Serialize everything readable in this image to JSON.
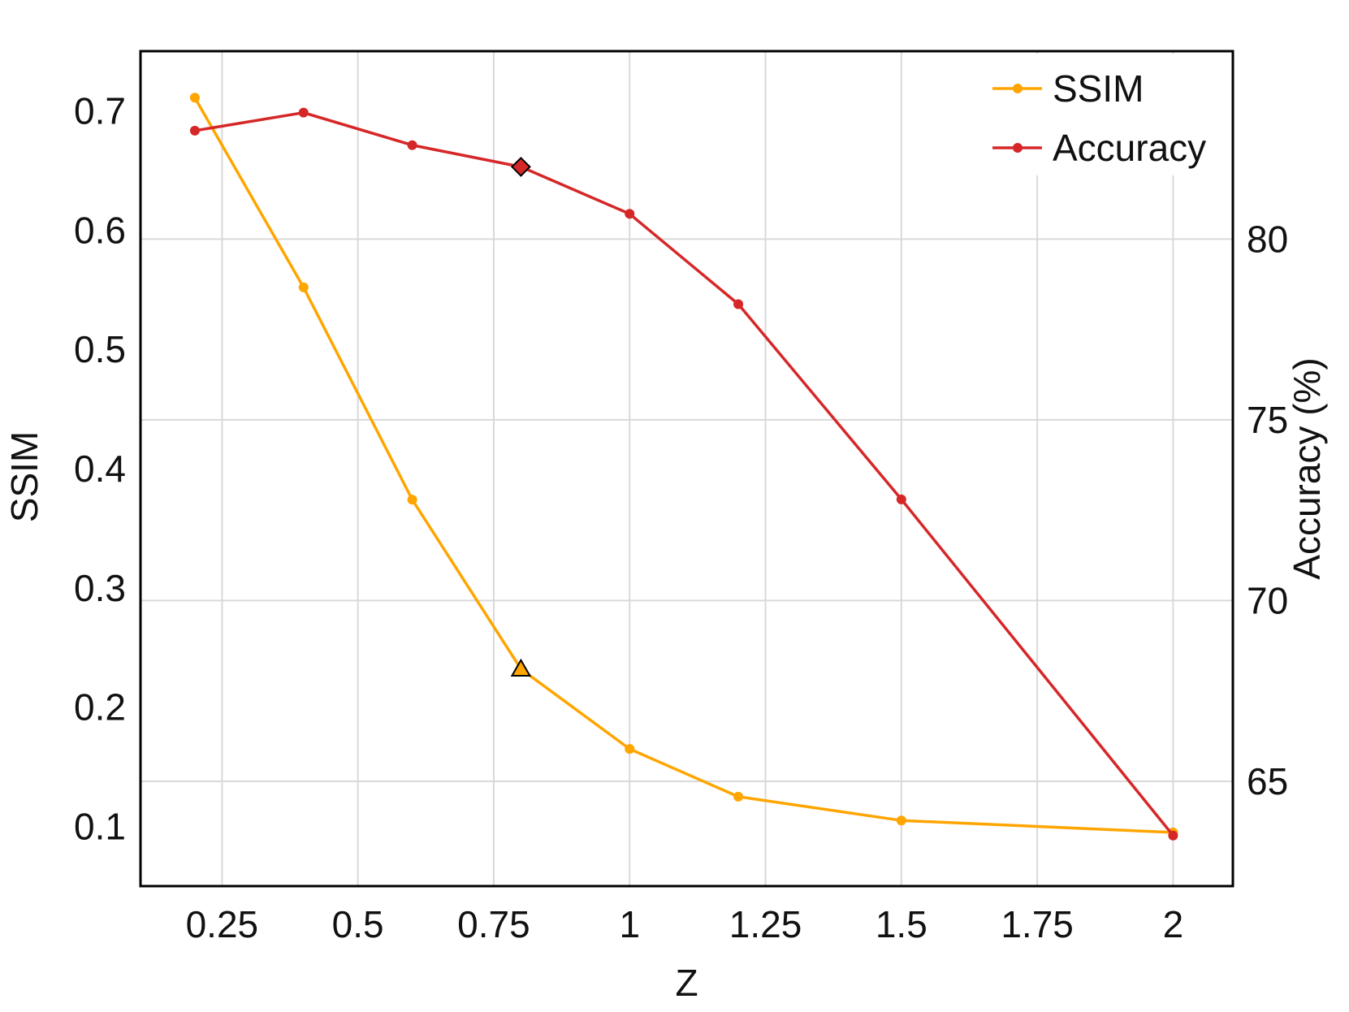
{
  "chart_data": {
    "type": "line",
    "xlabel": "Z",
    "ylabel_left": "SSIM",
    "ylabel_right": "Accuracy (%)",
    "x_ticks": [
      0.25,
      0.5,
      0.75,
      1,
      1.25,
      1.5,
      1.75,
      2
    ],
    "x_tick_labels": [
      "0.25",
      "0.5",
      "0.75",
      "1",
      "1.25",
      "1.5",
      "1.75",
      "2"
    ],
    "y_left_ticks": [
      0.1,
      0.2,
      0.3,
      0.4,
      0.5,
      0.6,
      0.7
    ],
    "y_left_tick_labels": [
      "0.1",
      "0.2",
      "0.3",
      "0.4",
      "0.5",
      "0.6",
      "0.7"
    ],
    "y_right_ticks": [
      65,
      70,
      75,
      80
    ],
    "y_right_tick_labels": [
      "65",
      "70",
      "75",
      "80"
    ],
    "xlim": [
      0.1,
      2.11
    ],
    "ylim_left": [
      0.05,
      0.75
    ],
    "ylim_right": [
      62.1,
      85.2
    ],
    "grid": true,
    "legend_position": "top-right",
    "series": [
      {
        "name": "SSIM",
        "axis": "left",
        "color": "#FFA500",
        "x": [
          0.2,
          0.4,
          0.6,
          0.8,
          1.0,
          1.2,
          1.5,
          2.0
        ],
        "values": [
          0.711,
          0.552,
          0.374,
          0.232,
          0.165,
          0.125,
          0.105,
          0.095
        ],
        "highlight_index": 3,
        "highlight_marker": "triangle"
      },
      {
        "name": "Accuracy",
        "axis": "right",
        "color": "#D62728",
        "x": [
          0.2,
          0.4,
          0.6,
          0.8,
          1.0,
          1.2,
          1.5,
          2.0
        ],
        "values": [
          83.0,
          83.5,
          82.6,
          82.0,
          80.7,
          78.2,
          72.8,
          63.5
        ],
        "highlight_index": 3,
        "highlight_marker": "diamond"
      }
    ]
  }
}
